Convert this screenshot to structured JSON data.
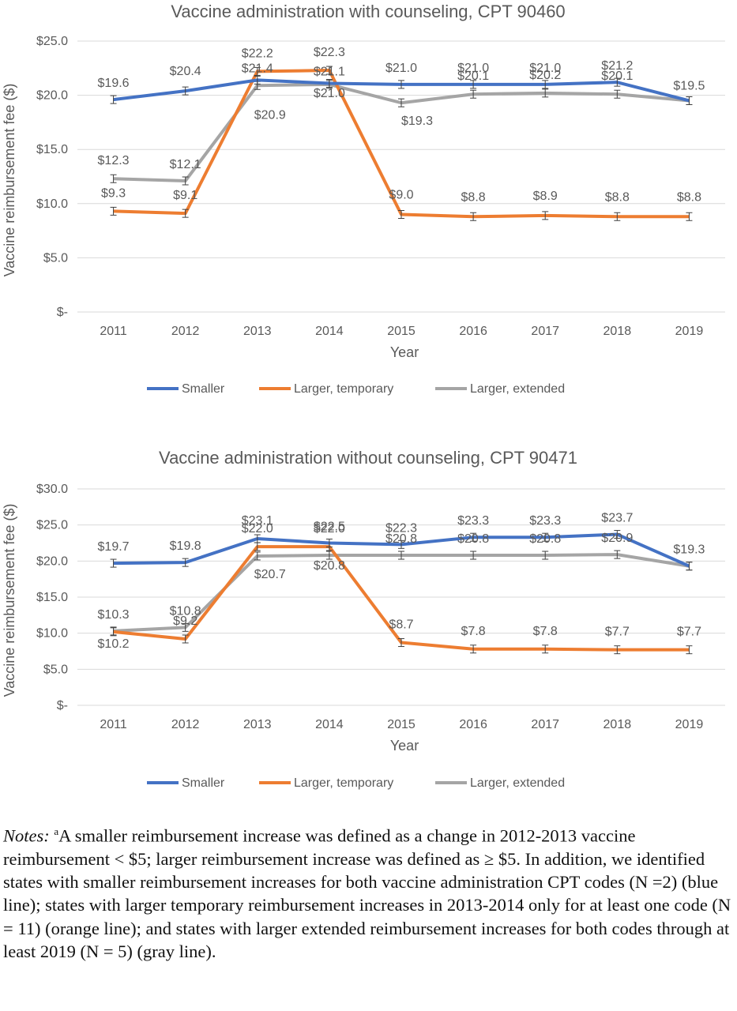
{
  "chart_data": [
    {
      "type": "line",
      "title": "Vaccine administration with counseling, CPT 90460",
      "xlabel": "Year",
      "ylabel": "Vaccine reimbursement fee ($)",
      "x": [
        "2011",
        "2012",
        "2013",
        "2014",
        "2015",
        "2016",
        "2017",
        "2018",
        "2019"
      ],
      "ylim": [
        0,
        25
      ],
      "yticks": [
        "$-",
        "$5.0",
        "$10.0",
        "$15.0",
        "$20.0",
        "$25.0"
      ],
      "legend_position": "bottom",
      "grid": true,
      "series": [
        {
          "name": "Smaller",
          "color": "#4472C4",
          "values": [
            19.6,
            20.4,
            21.4,
            21.1,
            21.0,
            21.0,
            21.0,
            21.2,
            19.5
          ],
          "labels": [
            "$19.6",
            "$20.4",
            "$21.4",
            "$21.1",
            "$21.0",
            "$21.0",
            "$21.0",
            "$21.2",
            "$19.5"
          ]
        },
        {
          "name": "Larger, temporary",
          "color": "#ED7D31",
          "values": [
            9.3,
            9.1,
            22.2,
            22.3,
            9.0,
            8.8,
            8.9,
            8.8,
            8.8
          ],
          "labels": [
            "$9.3",
            "$9.1",
            "$22.2",
            "$22.3",
            "$9.0",
            "$8.8",
            "$8.9",
            "$8.8",
            "$8.8"
          ]
        },
        {
          "name": "Larger, extended",
          "color": "#A5A5A5",
          "values": [
            12.3,
            12.1,
            20.9,
            21.0,
            19.3,
            20.1,
            20.2,
            20.1,
            19.5
          ],
          "labels": [
            "$12.3",
            "$12.1",
            "$20.9",
            "$21.0",
            "$19.3",
            "$20.1",
            "$20.2",
            "$20.1",
            ""
          ]
        }
      ]
    },
    {
      "type": "line",
      "title": "Vaccine administration without counseling, CPT 90471",
      "xlabel": "Year",
      "ylabel": "Vaccine reimbursement fee ($)",
      "x": [
        "2011",
        "2012",
        "2013",
        "2014",
        "2015",
        "2016",
        "2017",
        "2018",
        "2019"
      ],
      "ylim": [
        0,
        30
      ],
      "yticks": [
        "$-",
        "$5.0",
        "$10.0",
        "$15.0",
        "$20.0",
        "$25.0",
        "$30.0"
      ],
      "legend_position": "bottom",
      "grid": true,
      "series": [
        {
          "name": "Smaller",
          "color": "#4472C4",
          "values": [
            19.7,
            19.8,
            23.1,
            22.5,
            22.3,
            23.3,
            23.3,
            23.7,
            19.3
          ],
          "labels": [
            "$19.7",
            "$19.8",
            "$23.1",
            "$22.5",
            "$22.3",
            "$23.3",
            "$23.3",
            "$23.7",
            "$19.3"
          ]
        },
        {
          "name": "Larger, temporary",
          "color": "#ED7D31",
          "values": [
            10.2,
            9.2,
            22.0,
            22.0,
            8.7,
            7.8,
            7.8,
            7.7,
            7.7
          ],
          "labels": [
            "$10.2",
            "$9.2",
            "$22.0",
            "$22.0",
            "$8.7",
            "$7.8",
            "$7.8",
            "$7.7",
            "$7.7"
          ]
        },
        {
          "name": "Larger, extended",
          "color": "#A5A5A5",
          "values": [
            10.3,
            10.8,
            20.7,
            20.8,
            20.8,
            20.8,
            20.8,
            20.9,
            19.3
          ],
          "labels": [
            "$10.3",
            "$10.8",
            "$20.7",
            "$20.8",
            "$20.8",
            "$20.8",
            "$20.8",
            "$20.9",
            ""
          ]
        }
      ]
    }
  ],
  "notes": {
    "label": "Notes:",
    "superscript": "a",
    "text": "A smaller reimbursement increase was defined as a change in 2012-2013 vaccine reimbursement < $5; larger reimbursement increase was defined as ≥ $5. In addition, we identified states with smaller reimbursement increases for both vaccine administration CPT codes (N =2) (blue line); states with larger temporary reimbursement increases in 2013-2014 only for at least one code (N = 11) (orange line); and states with larger extended reimbursement increases for both codes through at least 2019 (N = 5) (gray line)."
  }
}
